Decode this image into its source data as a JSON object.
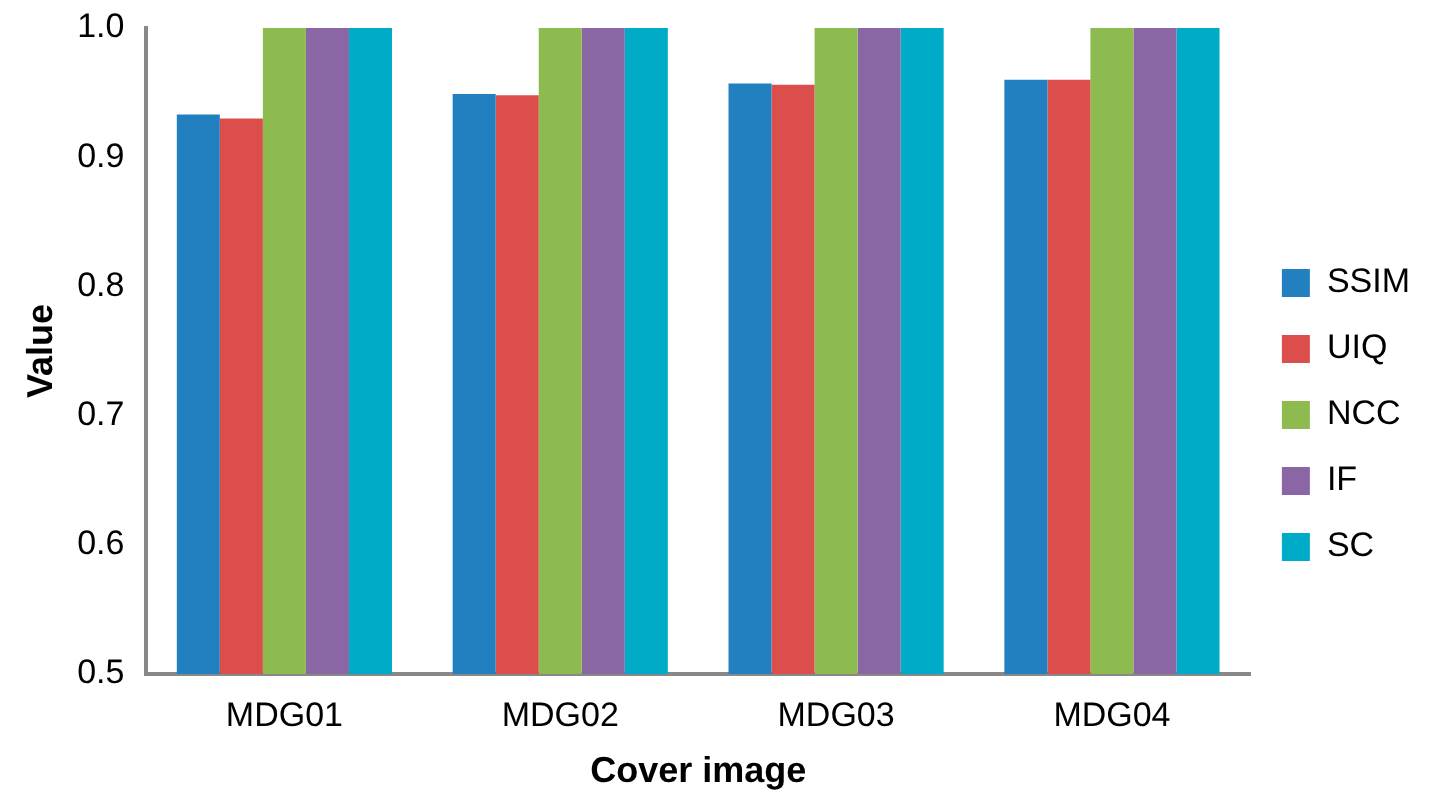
{
  "chart_data": {
    "type": "bar",
    "xlabel": "Cover image",
    "ylabel": "Value",
    "categories": [
      "MDG01",
      "MDG02",
      "MDG03",
      "MDG04"
    ],
    "series": [
      {
        "name": "SSIM",
        "color": "#2280c0",
        "values": [
          0.933,
          0.949,
          0.957,
          0.96
        ]
      },
      {
        "name": "UIQ",
        "color": "#dc4e4b",
        "values": [
          0.93,
          0.948,
          0.956,
          0.96
        ]
      },
      {
        "name": "NCC",
        "color": "#8dbb4f",
        "values": [
          1.0,
          1.0,
          1.0,
          1.0
        ]
      },
      {
        "name": "IF",
        "color": "#8b66a4",
        "values": [
          1.0,
          1.0,
          1.0,
          1.0
        ]
      },
      {
        "name": "SC",
        "color": "#00abc8",
        "values": [
          1.0,
          1.0,
          1.0,
          1.0
        ]
      }
    ],
    "ylim": [
      0.5,
      1.0
    ],
    "yticks": [
      {
        "value": 0.5,
        "label": "0.5"
      },
      {
        "value": 0.6,
        "label": "0.6"
      },
      {
        "value": 0.7,
        "label": "0.7"
      },
      {
        "value": 0.8,
        "label": "0.8"
      },
      {
        "value": 0.9,
        "label": "0.9"
      },
      {
        "value": 1.0,
        "label": "1.0"
      }
    ],
    "grid": false,
    "legend": "right"
  }
}
